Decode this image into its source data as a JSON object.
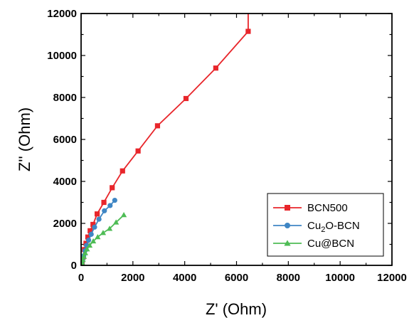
{
  "chart_data": {
    "type": "line",
    "xlabel": "Z' (Ohm)",
    "ylabel": "Z'' (Ohm)",
    "xlim": [
      0,
      12000
    ],
    "ylim": [
      0,
      12000
    ],
    "xticks": [
      "0",
      "2000",
      "4000",
      "6000",
      "8000",
      "10000",
      "12000"
    ],
    "yticks": [
      "0",
      "2000",
      "4000",
      "6000",
      "8000",
      "10000",
      "12000"
    ],
    "legend_position": "bottom-right",
    "series": [
      {
        "name": "BCN500",
        "legend_parts": [
          {
            "t": "BCN500",
            "sub": false
          }
        ],
        "color": "#e8262b",
        "marker": "square",
        "x": [
          40,
          80,
          130,
          190,
          260,
          350,
          460,
          620,
          880,
          1200,
          1600,
          2200,
          2950,
          4050,
          5200,
          6450
        ],
        "y": [
          150,
          400,
          750,
          1050,
          1350,
          1650,
          1950,
          2450,
          3000,
          3700,
          4500,
          5450,
          6650,
          7950,
          9400,
          11150
        ],
        "y_last": 12000
      },
      {
        "name": "Cu2O-BCN",
        "legend_parts": [
          {
            "t": "Cu",
            "sub": false
          },
          {
            "t": "2",
            "sub": true
          },
          {
            "t": "O-BCN",
            "sub": false
          }
        ],
        "color": "#3f86c4",
        "marker": "circle",
        "x": [
          30,
          60,
          100,
          150,
          210,
          290,
          390,
          520,
          690,
          900,
          1120,
          1300
        ],
        "y": [
          80,
          240,
          460,
          700,
          950,
          1200,
          1480,
          1820,
          2200,
          2600,
          2850,
          3100
        ]
      },
      {
        "name": "Cu@BCN",
        "legend_parts": [
          {
            "t": "Cu@BCN",
            "sub": false
          }
        ],
        "color": "#4ebc55",
        "marker": "triangle",
        "x": [
          20,
          40,
          70,
          110,
          160,
          230,
          330,
          470,
          640,
          850,
          1100,
          1350,
          1650
        ],
        "y": [
          40,
          130,
          260,
          420,
          590,
          770,
          950,
          1150,
          1350,
          1550,
          1750,
          2050,
          2400
        ]
      }
    ]
  }
}
